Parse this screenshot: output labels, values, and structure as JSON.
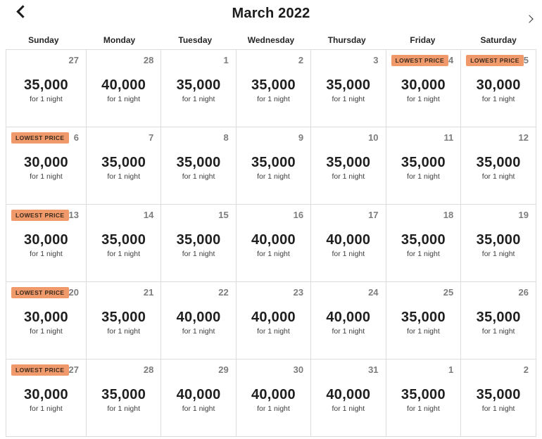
{
  "header": {
    "title": "March 2022"
  },
  "weekdays": [
    "Sunday",
    "Monday",
    "Tuesday",
    "Wednesday",
    "Thursday",
    "Friday",
    "Saturday"
  ],
  "labels": {
    "lowest_price": "LOWEST PRICE",
    "per_night": "for 1 night"
  },
  "colors": {
    "badge_bg": "#F09A6C",
    "badge_text": "#3A2A1C",
    "grid_border": "#DCDCDC",
    "day_number": "#7D7D7D",
    "price_text": "#1F1F1F"
  },
  "weeks": [
    [
      {
        "day": "27",
        "price": "35,000",
        "lowest": false
      },
      {
        "day": "28",
        "price": "40,000",
        "lowest": false
      },
      {
        "day": "1",
        "price": "35,000",
        "lowest": false
      },
      {
        "day": "2",
        "price": "35,000",
        "lowest": false
      },
      {
        "day": "3",
        "price": "35,000",
        "lowest": false
      },
      {
        "day": "4",
        "price": "30,000",
        "lowest": true
      },
      {
        "day": "5",
        "price": "30,000",
        "lowest": true
      }
    ],
    [
      {
        "day": "6",
        "price": "30,000",
        "lowest": true
      },
      {
        "day": "7",
        "price": "35,000",
        "lowest": false
      },
      {
        "day": "8",
        "price": "35,000",
        "lowest": false
      },
      {
        "day": "9",
        "price": "35,000",
        "lowest": false
      },
      {
        "day": "10",
        "price": "35,000",
        "lowest": false
      },
      {
        "day": "11",
        "price": "35,000",
        "lowest": false
      },
      {
        "day": "12",
        "price": "35,000",
        "lowest": false
      }
    ],
    [
      {
        "day": "13",
        "price": "30,000",
        "lowest": true
      },
      {
        "day": "14",
        "price": "35,000",
        "lowest": false
      },
      {
        "day": "15",
        "price": "35,000",
        "lowest": false
      },
      {
        "day": "16",
        "price": "40,000",
        "lowest": false
      },
      {
        "day": "17",
        "price": "40,000",
        "lowest": false
      },
      {
        "day": "18",
        "price": "35,000",
        "lowest": false
      },
      {
        "day": "19",
        "price": "35,000",
        "lowest": false
      }
    ],
    [
      {
        "day": "20",
        "price": "30,000",
        "lowest": true
      },
      {
        "day": "21",
        "price": "35,000",
        "lowest": false
      },
      {
        "day": "22",
        "price": "40,000",
        "lowest": false
      },
      {
        "day": "23",
        "price": "40,000",
        "lowest": false
      },
      {
        "day": "24",
        "price": "40,000",
        "lowest": false
      },
      {
        "day": "25",
        "price": "35,000",
        "lowest": false
      },
      {
        "day": "26",
        "price": "35,000",
        "lowest": false
      }
    ],
    [
      {
        "day": "27",
        "price": "30,000",
        "lowest": true
      },
      {
        "day": "28",
        "price": "35,000",
        "lowest": false
      },
      {
        "day": "29",
        "price": "40,000",
        "lowest": false
      },
      {
        "day": "30",
        "price": "40,000",
        "lowest": false
      },
      {
        "day": "31",
        "price": "40,000",
        "lowest": false
      },
      {
        "day": "1",
        "price": "35,000",
        "lowest": false
      },
      {
        "day": "2",
        "price": "35,000",
        "lowest": false
      }
    ]
  ]
}
